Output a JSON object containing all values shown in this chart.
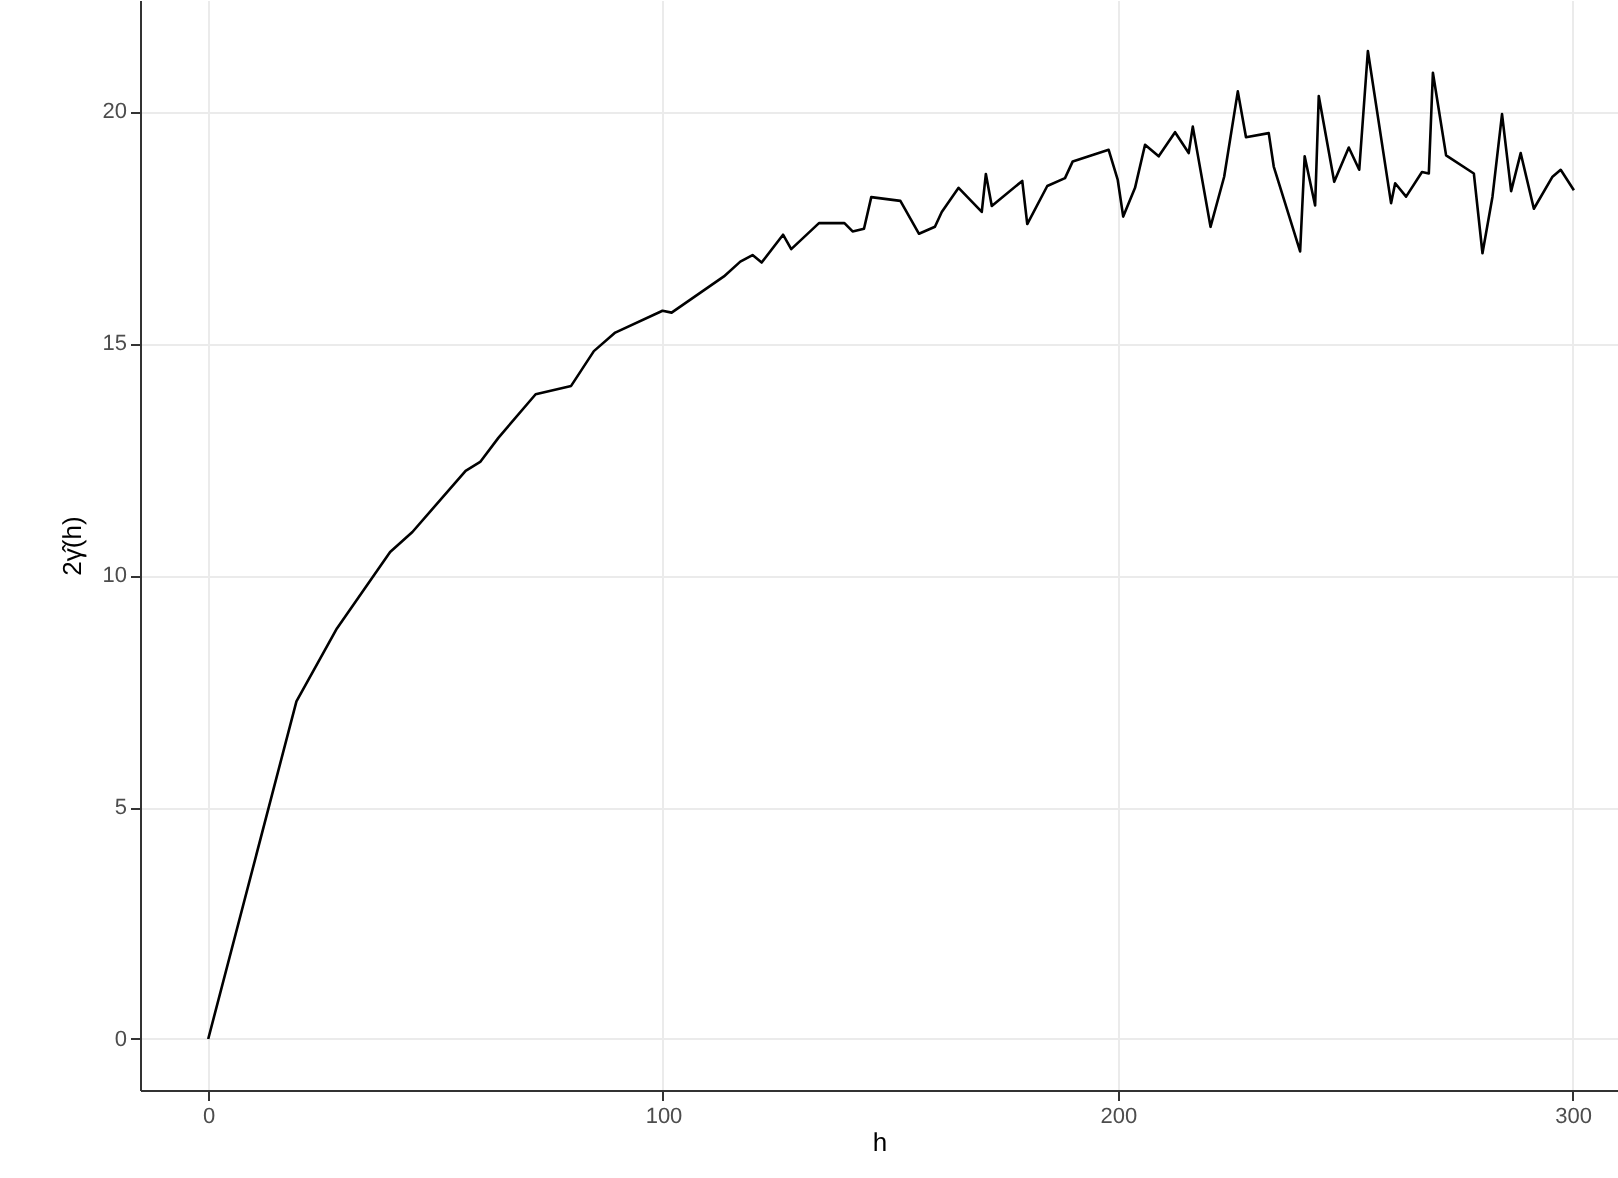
{
  "chart_data": {
    "type": "line",
    "xlabel": "h",
    "ylabel": "2γ̂(h)",
    "xlim": [
      -15,
      310
    ],
    "ylim": [
      -1.1,
      22.4
    ],
    "xticks": [
      0,
      100,
      200,
      300
    ],
    "yticks": [
      0,
      5,
      10,
      15,
      20
    ],
    "grid": true,
    "x": [
      0,
      19.4,
      28.3,
      40,
      44.9,
      56.6,
      59.8,
      63.8,
      72,
      79.8,
      84.8,
      89.5,
      99.9,
      101.9,
      113.4,
      117,
      119.7,
      121.7,
      126.4,
      128.2,
      134.3,
      139.9,
      141.7,
      144.2,
      145.8,
      152.2,
      156.3,
      159.8,
      161.3,
      165,
      170.1,
      171,
      172.3,
      179,
      180.1,
      184.5,
      188.4,
      190.1,
      198,
      200,
      201.2,
      203.8,
      206,
      209,
      212.6,
      215.6,
      216.5,
      220.4,
      223.4,
      226.4,
      228.2,
      233.2,
      234.3,
      240.1,
      241.1,
      243.4,
      244.2,
      247.6,
      250.8,
      253.1,
      255,
      260.1,
      261,
      263.4,
      266.9,
      268.4,
      269.3,
      272.2,
      278.3,
      280.2,
      282.4,
      284.5,
      286.5,
      288.6,
      291.5,
      295.6,
      297.4,
      300.3
    ],
    "series": [
      {
        "color": "#000000",
        "values": [
          0,
          7.28,
          8.85,
          10.5,
          10.93,
          12.25,
          12.44,
          12.96,
          13.9,
          14.08,
          14.83,
          15.23,
          15.7,
          15.66,
          16.44,
          16.76,
          16.9,
          16.74,
          17.34,
          17.03,
          17.59,
          17.59,
          17.41,
          17.47,
          18.15,
          18.07,
          17.36,
          17.51,
          17.83,
          18.35,
          17.83,
          18.65,
          17.96,
          18.5,
          17.57,
          18.39,
          18.56,
          18.92,
          19.17,
          18.52,
          17.73,
          18.35,
          19.28,
          19.03,
          19.55,
          19.1,
          19.67,
          17.51,
          18.59,
          20.43,
          19.44,
          19.53,
          18.81,
          16.98,
          19.03,
          17.97,
          20.33,
          18.48,
          19.22,
          18.74,
          21.3,
          18.02,
          18.45,
          18.16,
          18.69,
          18.66,
          20.83,
          19.05,
          18.66,
          16.94,
          18.16,
          19.94,
          18.28,
          19.1,
          17.9,
          18.59,
          18.74,
          18.3
        ]
      }
    ]
  }
}
